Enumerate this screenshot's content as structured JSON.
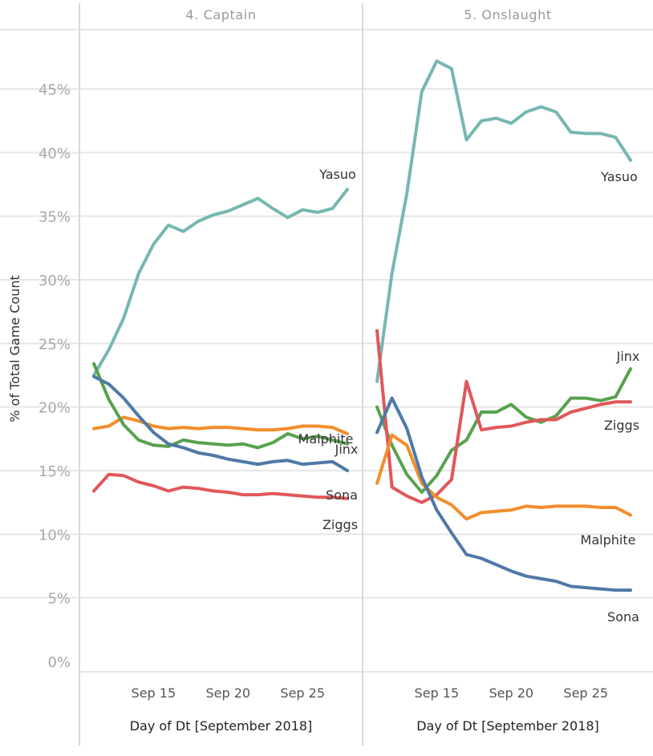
{
  "chart_data": {
    "type": "line",
    "ylabel": "% of Total Game Count",
    "ylim": [
      0,
      50
    ],
    "yticks": [
      0,
      5,
      10,
      15,
      20,
      25,
      30,
      35,
      40,
      45
    ],
    "ytick_labels": [
      "0%",
      "5%",
      "10%",
      "15%",
      "20%",
      "25%",
      "30%",
      "35%",
      "40%",
      "45%"
    ],
    "grid": true,
    "legend": "direct labels",
    "panels": [
      {
        "title": "4. Captain",
        "xlabel": "Day of Dt [September 2018]",
        "xlim": [
          10,
          29.5
        ],
        "xticks": [
          15,
          20,
          25
        ],
        "xtick_labels": [
          "Sep 15",
          "Sep 20",
          "Sep 25"
        ],
        "x": [
          11,
          12,
          13,
          14,
          15,
          16,
          17,
          18,
          19,
          20,
          21,
          22,
          23,
          24,
          25,
          26,
          27,
          28
        ],
        "series": [
          {
            "name": "Yasuo",
            "color": "#76b7b2",
            "values": [
              22.5,
              24.5,
              27.0,
              30.5,
              32.8,
              34.3,
              33.8,
              34.6,
              35.1,
              35.4,
              35.9,
              36.4,
              35.6,
              34.9,
              35.5,
              35.3,
              35.6,
              37.1
            ]
          },
          {
            "name": "Malphite",
            "color": "#f28e2b",
            "values": [
              18.3,
              18.5,
              19.2,
              18.9,
              18.5,
              18.3,
              18.4,
              18.3,
              18.4,
              18.4,
              18.3,
              18.2,
              18.2,
              18.3,
              18.5,
              18.5,
              18.4,
              17.9
            ]
          },
          {
            "name": "Jinx",
            "color": "#59a14f",
            "values": [
              23.4,
              20.6,
              18.6,
              17.4,
              17.0,
              16.9,
              17.4,
              17.2,
              17.1,
              17.0,
              17.1,
              16.8,
              17.2,
              17.9,
              17.5,
              17.7,
              17.4,
              17.1
            ]
          },
          {
            "name": "Sona",
            "color": "#4e79a7",
            "values": [
              22.4,
              21.8,
              20.7,
              19.3,
              18.0,
              17.1,
              16.8,
              16.4,
              16.2,
              15.9,
              15.7,
              15.5,
              15.7,
              15.8,
              15.5,
              15.6,
              15.7,
              15.0
            ]
          },
          {
            "name": "Ziggs",
            "color": "#e15759",
            "values": [
              13.4,
              14.7,
              14.6,
              14.1,
              13.8,
              13.4,
              13.7,
              13.6,
              13.4,
              13.3,
              13.1,
              13.1,
              13.2,
              13.1,
              13.0,
              12.9,
              12.9,
              12.8
            ]
          }
        ]
      },
      {
        "title": "5. Onslaught",
        "xlabel": "Day of Dt [September 2018]",
        "xlim": [
          10,
          29.5
        ],
        "xticks": [
          15,
          20,
          25
        ],
        "xtick_labels": [
          "Sep 15",
          "Sep 20",
          "Sep 25"
        ],
        "x": [
          11,
          12,
          13,
          14,
          15,
          16,
          17,
          18,
          19,
          20,
          21,
          22,
          23,
          24,
          25,
          26,
          27,
          28
        ],
        "series": [
          {
            "name": "Yasuo",
            "color": "#76b7b2",
            "values": [
              22.0,
              30.5,
              36.8,
              44.8,
              47.2,
              46.6,
              41.0,
              42.5,
              42.7,
              42.3,
              43.2,
              43.6,
              43.2,
              41.6,
              41.5,
              41.5,
              41.2,
              39.4
            ]
          },
          {
            "name": "Jinx",
            "color": "#59a14f",
            "values": [
              20.0,
              17.0,
              14.7,
              13.3,
              14.6,
              16.6,
              17.4,
              19.6,
              19.6,
              20.2,
              19.2,
              18.8,
              19.3,
              20.7,
              20.7,
              20.5,
              20.8,
              23.0
            ]
          },
          {
            "name": "Ziggs",
            "color": "#e15759",
            "values": [
              26.0,
              13.7,
              13.0,
              12.5,
              13.1,
              14.3,
              22.0,
              18.2,
              18.4,
              18.5,
              18.8,
              19.0,
              19.0,
              19.6,
              19.9,
              20.2,
              20.4,
              20.4
            ]
          },
          {
            "name": "Malphite",
            "color": "#f28e2b",
            "values": [
              14.0,
              17.8,
              17.0,
              14.0,
              12.9,
              12.3,
              11.2,
              11.7,
              11.8,
              11.9,
              12.2,
              12.1,
              12.2,
              12.2,
              12.2,
              12.1,
              12.1,
              11.5
            ]
          },
          {
            "name": "Sona",
            "color": "#4e79a7",
            "values": [
              18.0,
              20.7,
              18.3,
              14.5,
              11.9,
              10.1,
              8.4,
              8.1,
              7.6,
              7.1,
              6.7,
              6.5,
              6.3,
              5.9,
              5.8,
              5.7,
              5.6,
              5.6
            ]
          }
        ]
      }
    ]
  }
}
